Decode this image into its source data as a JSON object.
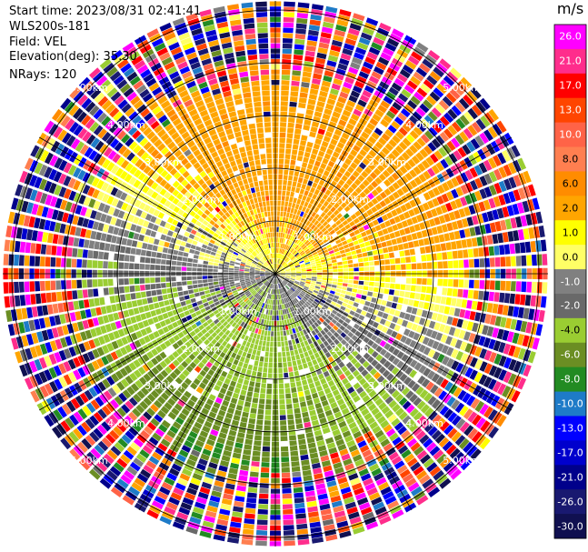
{
  "info": {
    "start_time": "Start time: 2023/08/31 02:41:41",
    "instrument": "WLS200s-181",
    "field": "Field: VEL",
    "elevation": "Elevation(deg): 35.30",
    "nrays": "NRays: 120"
  },
  "rings": {
    "labels": [
      "1.00km",
      "2.00km",
      "3.00km",
      "4.00km",
      "5.00km"
    ]
  },
  "colorbar": {
    "title": "m/s",
    "min": -30,
    "max": 30,
    "ticks": [
      26.0,
      21.0,
      17.0,
      13.0,
      10.0,
      8.0,
      6.0,
      2.0,
      1.0,
      0.0,
      -1.0,
      -2.0,
      -4.0,
      -6.0,
      -8.0,
      -10.0,
      -13.0,
      -17.0,
      -21.0,
      -26.0,
      -30.0
    ],
    "tick_labels": [
      "26.0",
      "21.0",
      "17.0",
      "13.0",
      "10.0",
      "8.0",
      "6.0",
      "2.0",
      "1.0",
      "0.0",
      "-1.0",
      "-2.0",
      "-4.0",
      "-6.0",
      "-8.0",
      "-10.0",
      "-13.0",
      "-17.0",
      "-21.0",
      "-26.0",
      "-30.0"
    ],
    "bins": [
      {
        "min": 26,
        "max": 30,
        "color": "#ff00ff"
      },
      {
        "min": 21,
        "max": 26,
        "color": "#ff2d8c"
      },
      {
        "min": 17,
        "max": 21,
        "color": "#ff0000"
      },
      {
        "min": 13,
        "max": 17,
        "color": "#ff4500"
      },
      {
        "min": 10,
        "max": 13,
        "color": "#ff6347"
      },
      {
        "min": 8,
        "max": 10,
        "color": "#ff7f50"
      },
      {
        "min": 6,
        "max": 8,
        "color": "#ff8c00"
      },
      {
        "min": 2,
        "max": 6,
        "color": "#ffa500"
      },
      {
        "min": 1,
        "max": 2,
        "color": "#ffff00"
      },
      {
        "min": 0,
        "max": 1,
        "color": "#ffff66"
      },
      {
        "min": -1,
        "max": 0,
        "color": "#808080"
      },
      {
        "min": -2,
        "max": -1,
        "color": "#696969"
      },
      {
        "min": -4,
        "max": -2,
        "color": "#9acd32"
      },
      {
        "min": -6,
        "max": -4,
        "color": "#6b8e23"
      },
      {
        "min": -8,
        "max": -6,
        "color": "#228b22"
      },
      {
        "min": -10,
        "max": -8,
        "color": "#1e7bc8"
      },
      {
        "min": -13,
        "max": -10,
        "color": "#0000ff"
      },
      {
        "min": -17,
        "max": -13,
        "color": "#0000cd"
      },
      {
        "min": -21,
        "max": -17,
        "color": "#00008b"
      },
      {
        "min": -26,
        "max": -21,
        "color": "#191970"
      },
      {
        "min": -30,
        "max": -26,
        "color": "#101050"
      }
    ]
  }
}
